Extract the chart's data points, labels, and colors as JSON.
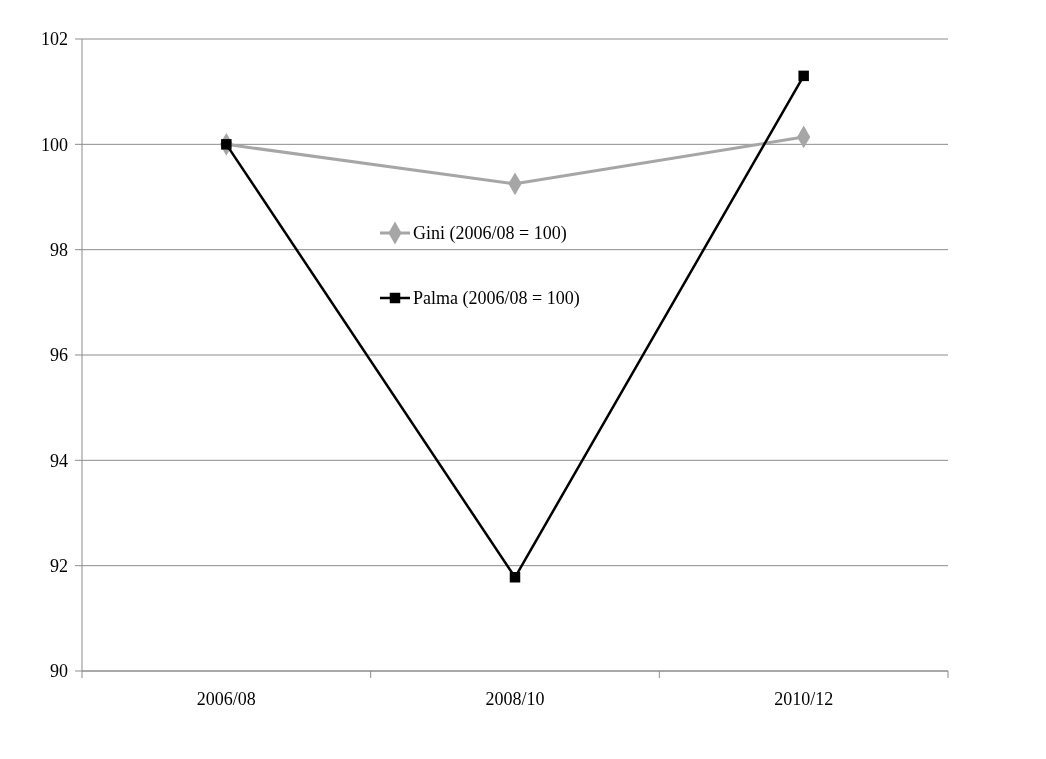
{
  "chart_data": {
    "type": "line",
    "categories": [
      "2006/08",
      "2008/10",
      "2010/12"
    ],
    "series": [
      {
        "name": "Gini (2006/08 = 100)",
        "color": "#a6a6a6",
        "marker": "diamond",
        "values": [
          100,
          99.25,
          100.14
        ]
      },
      {
        "name": "Palma (2006/08 = 100)",
        "color": "#000000",
        "marker": "square",
        "values": [
          100,
          91.78,
          101.3
        ]
      }
    ],
    "ylim": [
      90,
      102
    ],
    "yticks": [
      90,
      92,
      94,
      96,
      98,
      100,
      102
    ],
    "grid": "y",
    "legend": "top"
  }
}
